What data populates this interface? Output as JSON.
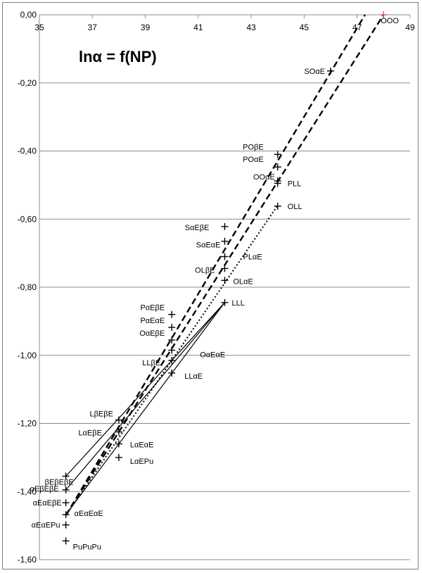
{
  "chart_data": {
    "type": "scatter",
    "title": "lnα = f(NP)",
    "xlim": [
      35,
      49
    ],
    "ylim": [
      -1.6,
      0.0
    ],
    "x_ticks": [
      "35",
      "37",
      "39",
      "41",
      "43",
      "45",
      "47",
      "49"
    ],
    "y_ticks": [
      "0,00",
      "-0,20",
      "-0,40",
      "-0,60",
      "-0,80",
      "-1,00",
      "-1,20",
      "-1,40",
      "-1,60"
    ],
    "grid": "horizontal",
    "points": [
      {
        "label": "OOO",
        "x": 48.0,
        "y": 0.0,
        "color": "#e05050"
      },
      {
        "label": "SOαE",
        "x": 46.0,
        "y": -0.165
      },
      {
        "label": "POβE",
        "x": 44.0,
        "y": -0.41
      },
      {
        "label": "POαE",
        "x": 44.0,
        "y": -0.447
      },
      {
        "label": "OOαE",
        "x": 44.0,
        "y": -0.488
      },
      {
        "label": "PLL",
        "x": 44.0,
        "y": -0.495
      },
      {
        "label": "OLL",
        "x": 44.0,
        "y": -0.562
      },
      {
        "label": "SαEβE",
        "x": 42.0,
        "y": -0.622
      },
      {
        "label": "SαEαE",
        "x": 42.0,
        "y": -0.665
      },
      {
        "label": "PLαE",
        "x": 42.0,
        "y": -0.71
      },
      {
        "label": "OLβE",
        "x": 42.0,
        "y": -0.745
      },
      {
        "label": "OLαE",
        "x": 42.0,
        "y": -0.78
      },
      {
        "label": "LLL",
        "x": 42.0,
        "y": -0.845
      },
      {
        "label": "PαEβE",
        "x": 40.0,
        "y": -0.88
      },
      {
        "label": "PαEαE",
        "x": 40.0,
        "y": -0.918
      },
      {
        "label": "OαEβE",
        "x": 40.0,
        "y": -0.955
      },
      {
        "label": "OαEαE",
        "x": 40.0,
        "y": -0.985
      },
      {
        "label": "LLβE",
        "x": 40.0,
        "y": -1.015
      },
      {
        "label": "LLαE",
        "x": 40.0,
        "y": -1.052
      },
      {
        "label": "LβEβE",
        "x": 38.0,
        "y": -1.19
      },
      {
        "label": "LαEβE",
        "x": 38.0,
        "y": -1.225
      },
      {
        "label": "LαEαE",
        "x": 38.0,
        "y": -1.26
      },
      {
        "label": "LαEPu",
        "x": 38.0,
        "y": -1.3
      },
      {
        "label": "βEβEβE",
        "x": 36.0,
        "y": -1.355
      },
      {
        "label": "αEβEβE",
        "x": 36.0,
        "y": -1.395
      },
      {
        "label": "αEαEβE",
        "x": 36.0,
        "y": -1.433
      },
      {
        "label": "αEαEαE",
        "x": 36.0,
        "y": -1.468
      },
      {
        "label": "αEαEPu",
        "x": 36.0,
        "y": -1.498
      },
      {
        "label": "PuPuPu",
        "x": 36.0,
        "y": -1.545
      }
    ],
    "lines": [
      {
        "style": "dashed",
        "x": [
          36.0,
          47.3
        ],
        "y": [
          -1.47,
          0.0
        ]
      },
      {
        "style": "dashed",
        "x": [
          36.0,
          48.0
        ],
        "y": [
          -1.47,
          0.0
        ]
      },
      {
        "style": "dotted",
        "x": [
          36.0,
          44.0
        ],
        "y": [
          -1.47,
          -0.56
        ]
      },
      {
        "style": "solid",
        "x": [
          36.0,
          42.0
        ],
        "y": [
          -1.355,
          -0.845
        ]
      },
      {
        "style": "solid",
        "x": [
          36.0,
          42.0
        ],
        "y": [
          -1.395,
          -0.845
        ]
      },
      {
        "style": "solid",
        "x": [
          36.0,
          42.0
        ],
        "y": [
          -1.468,
          -0.845
        ]
      }
    ]
  }
}
